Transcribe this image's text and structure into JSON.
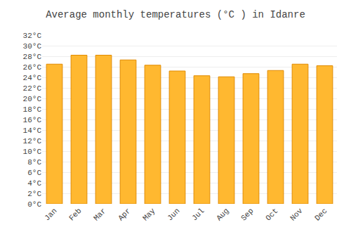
{
  "chart_data": {
    "type": "bar",
    "title": "Average monthly temperatures (°C ) in Idanre",
    "categories": [
      "Jan",
      "Feb",
      "Mar",
      "Apr",
      "May",
      "Jun",
      "Jul",
      "Aug",
      "Sep",
      "Oct",
      "Nov",
      "Dec"
    ],
    "values": [
      26.5,
      28.2,
      28.2,
      27.3,
      26.3,
      25.2,
      24.3,
      24.1,
      24.7,
      25.3,
      26.5,
      26.2
    ],
    "color": "#FFB830",
    "ylim": [
      0,
      32
    ],
    "yticks": [
      {
        "value": 0,
        "label": "0°C"
      },
      {
        "value": 2,
        "label": "2°C"
      },
      {
        "value": 4,
        "label": "4°C"
      },
      {
        "value": 6,
        "label": "6°C"
      },
      {
        "value": 8,
        "label": "8°C"
      },
      {
        "value": 10,
        "label": "10°C"
      },
      {
        "value": 12,
        "label": "12°C"
      },
      {
        "value": 14,
        "label": "14°C"
      },
      {
        "value": 16,
        "label": "16°C"
      },
      {
        "value": 18,
        "label": "18°C"
      },
      {
        "value": 20,
        "label": "20°C"
      },
      {
        "value": 22,
        "label": "22°C"
      },
      {
        "value": 24,
        "label": "24°C"
      },
      {
        "value": 26,
        "label": "26°C"
      },
      {
        "value": 28,
        "label": "28°C"
      },
      {
        "value": 30,
        "label": "30°C"
      },
      {
        "value": 32,
        "label": "32°C"
      }
    ],
    "grid": true
  }
}
